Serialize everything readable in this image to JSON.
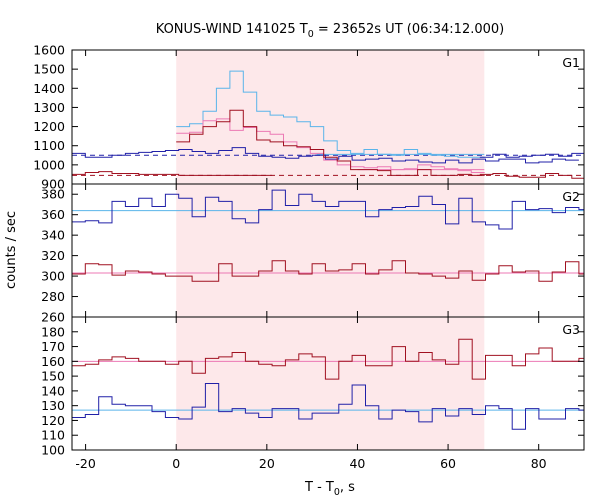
{
  "chart_data": {
    "type": "line",
    "title_main": "KONUS-WIND 141025 T",
    "title_sub": "0",
    "title_rest": " = 23652s UT (06:34:12.000)",
    "xlabel_main": "T - T",
    "xlabel_sub": "0",
    "xlabel_rest": ", s",
    "ylabel": "counts / sec",
    "xlim": [
      -23,
      90
    ],
    "xticks": [
      -20,
      0,
      20,
      40,
      60,
      80
    ],
    "shaded_interval": [
      0,
      68
    ],
    "colors": {
      "blue": "#2020a8",
      "red": "#a01020",
      "lightblue": "#5ab4ea",
      "pink": "#ec79b4",
      "shade": "#fde8ea"
    },
    "panels": [
      {
        "label": "G1",
        "ylim": [
          900,
          1600
        ],
        "yticks": [
          900,
          1000,
          1100,
          1200,
          1300,
          1400,
          1500,
          1600
        ],
        "x_start": -23,
        "bin_width": 2.944,
        "series": [
          {
            "color_key": "blue",
            "values": [
              1060,
              1040,
              1040,
              1050,
              1060,
              1065,
              1070,
              1075,
              1080,
              1070,
              1060,
              1075,
              1090,
              1060,
              1045,
              1040,
              1035,
              1045,
              1050,
              1030,
              1045,
              1025,
              1030,
              1035,
              1020,
              1025,
              1015,
              1010,
              1025,
              1010,
              1030,
              1020,
              1030,
              1030,
              1010,
              1015,
              1030,
              1025
            ]
          },
          {
            "color_key": "red",
            "values": [
              950,
              960,
              965,
              955,
              955,
              950,
              950,
              950,
              945,
              945,
              945,
              945,
              945,
              945,
              945
            ]
          }
        ],
        "onsource_x_start": 0,
        "onsource_bin_width": 2.96,
        "onsource": [
          {
            "color_key": "lightblue",
            "values": [
              1200,
              1215,
              1280,
              1400,
              1490,
              1380,
              1280,
              1260,
              1250,
              1225,
              1200,
              1125,
              1075,
              1060,
              1080,
              1055,
              1050,
              1080,
              1060,
              1050,
              1045,
              1040,
              1040
            ]
          },
          {
            "color_key": "pink",
            "values": [
              1165,
              1170,
              1230,
              1240,
              1180,
              1195,
              1175,
              1160,
              1120,
              1090,
              1060,
              1025,
              1000,
              990,
              985,
              990,
              975,
              980,
              1000,
              990,
              980,
              970,
              960
            ]
          },
          {
            "color_key": "red",
            "values": [
              1120,
              1160,
              1200,
              1225,
              1285,
              1200,
              1130,
              1120,
              1100,
              1095,
              1080,
              1040,
              1020,
              975,
              975,
              970,
              945,
              945,
              975,
              945,
              945,
              950,
              945
            ]
          }
        ],
        "post_x_start": 67,
        "post_bin_width": 2.9,
        "post": [
          {
            "color_key": "blue",
            "values": [
              1040,
              1055,
              1040,
              1045,
              1050,
              1055,
              1045,
              1060
            ]
          },
          {
            "color_key": "red",
            "values": [
              950,
              955,
              940,
              935,
              935,
              955,
              945,
              930
            ]
          }
        ],
        "bg_dashed": [
          {
            "color_key": "blue",
            "value": 1050
          },
          {
            "color_key": "red",
            "value": 945
          }
        ],
        "fits": [
          {
            "color_key": "lightblue",
            "from": 31,
            "to": 68,
            "value": 1055
          },
          {
            "color_key": "pink",
            "from": 40,
            "to": 68,
            "value": 975
          }
        ]
      },
      {
        "label": "G2",
        "ylim": [
          260,
          390
        ],
        "yticks": [
          260,
          280,
          300,
          320,
          340,
          360,
          380
        ],
        "x_start": -23,
        "bin_width": 2.944,
        "series": [
          {
            "color_key": "blue",
            "values": [
              353,
              354,
              352,
              373,
              368,
              376,
              368,
              380,
              376,
              358,
              377,
              373,
              356,
              352,
              365,
              384,
              369,
              380,
              373,
              368,
              373,
              373,
              358,
              365,
              367,
              368,
              378,
              370,
              351,
              376,
              353,
              350,
              346,
              373,
              365,
              366,
              362,
              367,
              365,
              368,
              367,
              358,
              350,
              370,
              366,
              363
            ]
          },
          {
            "color_key": "red",
            "values": [
              302,
              312,
              311,
              301,
              305,
              304,
              302,
              300,
              300,
              295,
              295,
              312,
              300,
              300,
              305,
              315,
              305,
              302,
              312,
              305,
              306,
              312,
              302,
              306,
              315,
              303,
              302,
              300,
              298,
              305,
              296,
              302,
              310,
              304,
              305,
              295,
              304,
              314,
              302,
              290,
              304,
              310,
              310,
              297,
              304,
              305
            ]
          }
        ],
        "hlines": [
          {
            "color_key": "lightblue",
            "value": 364
          },
          {
            "color_key": "pink",
            "value": 303
          }
        ]
      },
      {
        "label": "G3",
        "ylim": [
          100,
          190
        ],
        "yticks": [
          100,
          110,
          120,
          130,
          140,
          150,
          160,
          170,
          180
        ],
        "x_start": -23,
        "bin_width": 2.944,
        "series": [
          {
            "color_key": "red",
            "values": [
              157,
              158,
              161,
              163,
              162,
              160,
              160,
              158,
              160,
              152,
              162,
              163,
              166,
              160,
              158,
              157,
              161,
              165,
              163,
              148,
              160,
              164,
              157,
              157,
              170,
              160,
              166,
              161,
              158,
              175,
              148,
              164,
              164,
              157,
              165,
              169,
              160,
              160,
              162,
              173,
              168,
              158,
              160,
              160,
              163,
              167,
              150
            ]
          },
          {
            "color_key": "blue",
            "values": [
              122,
              124,
              136,
              131,
              130,
              130,
              126,
              122,
              121,
              129,
              145,
              126,
              128,
              125,
              122,
              128,
              128,
              121,
              125,
              125,
              131,
              144,
              130,
              121,
              127,
              126,
              119,
              128,
              123,
              128,
              124,
              130,
              128,
              114,
              128,
              121,
              121,
              128,
              127,
              122,
              128,
              132,
              130,
              130,
              134,
              127,
              128
            ]
          }
        ],
        "hlines": [
          {
            "color_key": "pink",
            "value": 160
          },
          {
            "color_key": "lightblue",
            "value": 127
          }
        ]
      }
    ]
  }
}
